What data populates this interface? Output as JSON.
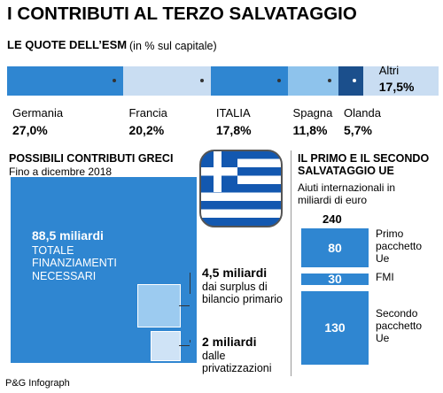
{
  "header": {
    "title": "I CONTRIBUTI AL TERZO SALVATAGGIO",
    "source": "P&G Infograph"
  },
  "chart_data": [
    {
      "type": "stacked-bar",
      "title": "LE QUOTE DELL’ESM",
      "subtitle": "(in % sul capitale)",
      "categories": [
        "Germania",
        "Francia",
        "ITALIA",
        "Spagna",
        "Olanda",
        "Altri"
      ],
      "values": [
        27.0,
        20.2,
        17.8,
        11.8,
        5.7,
        17.5
      ],
      "value_labels": [
        "27,0%",
        "20,2%",
        "17,8%",
        "11,8%",
        "5,7%",
        "17,5%"
      ],
      "colors": [
        "#2f86d1",
        "#c9ddf2",
        "#2f86d1",
        "#8ec3ec",
        "#1b4f8c",
        "#c9ddf2"
      ],
      "xlim": [
        0,
        100
      ]
    },
    {
      "type": "squares",
      "title": "POSSIBILI CONTRIBUTI GRECI",
      "subtitle": "Fino a dicembre 2018",
      "values": [
        88.5,
        4.5,
        2
      ],
      "value_labels": [
        "88,5 miliardi",
        "4,5 miliardi",
        "2 miliardi"
      ],
      "descriptions": [
        "TOTALE FINANZIAMENTI NECESSARI",
        "dai surplus di bilancio primario",
        "dalle privatizzazioni"
      ],
      "colors": [
        "#2f86d1",
        "#9ccbf0",
        "#cfe3f6"
      ]
    },
    {
      "type": "stacked-column",
      "title": "IL PRIMO E IL SECONDO SALVATAGGIO UE",
      "subtitle": "Aiuti internazionali in miliardi di euro",
      "categories": [
        "Primo pacchetto Ue",
        "FMI",
        "Secondo pacchetto Ue"
      ],
      "values": [
        80,
        30,
        130
      ],
      "total": 240,
      "ylim": [
        0,
        240
      ],
      "color": "#2f86d1"
    }
  ]
}
